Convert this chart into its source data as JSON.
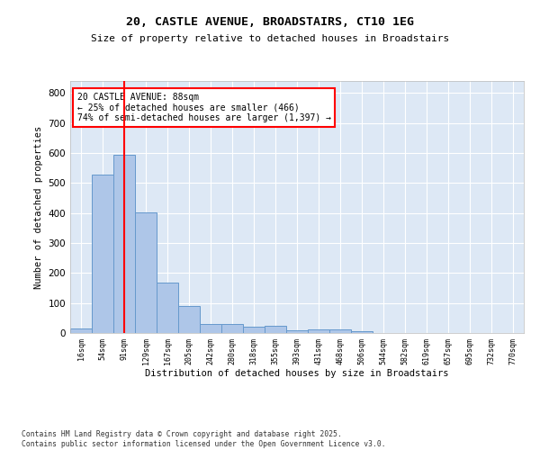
{
  "title_line1": "20, CASTLE AVENUE, BROADSTAIRS, CT10 1EG",
  "title_line2": "Size of property relative to detached houses in Broadstairs",
  "xlabel": "Distribution of detached houses by size in Broadstairs",
  "ylabel": "Number of detached properties",
  "bar_color": "#aec6e8",
  "bar_edge_color": "#6699cc",
  "background_color": "#dde8f5",
  "grid_color": "#ffffff",
  "fig_background": "#ffffff",
  "categories": [
    "16sqm",
    "54sqm",
    "91sqm",
    "129sqm",
    "167sqm",
    "205sqm",
    "242sqm",
    "280sqm",
    "318sqm",
    "355sqm",
    "393sqm",
    "431sqm",
    "468sqm",
    "506sqm",
    "544sqm",
    "582sqm",
    "619sqm",
    "657sqm",
    "695sqm",
    "732sqm",
    "770sqm"
  ],
  "values": [
    15,
    528,
    594,
    403,
    168,
    89,
    31,
    31,
    21,
    25,
    10,
    12,
    12,
    7,
    0,
    0,
    0,
    0,
    0,
    0,
    0
  ],
  "ylim": [
    0,
    840
  ],
  "yticks": [
    0,
    100,
    200,
    300,
    400,
    500,
    600,
    700,
    800
  ],
  "red_line_x": 2,
  "annotation_line1": "20 CASTLE AVENUE: 88sqm",
  "annotation_line2": "← 25% of detached houses are smaller (466)",
  "annotation_line3": "74% of semi-detached houses are larger (1,397) →",
  "footer_line1": "Contains HM Land Registry data © Crown copyright and database right 2025.",
  "footer_line2": "Contains public sector information licensed under the Open Government Licence v3.0."
}
